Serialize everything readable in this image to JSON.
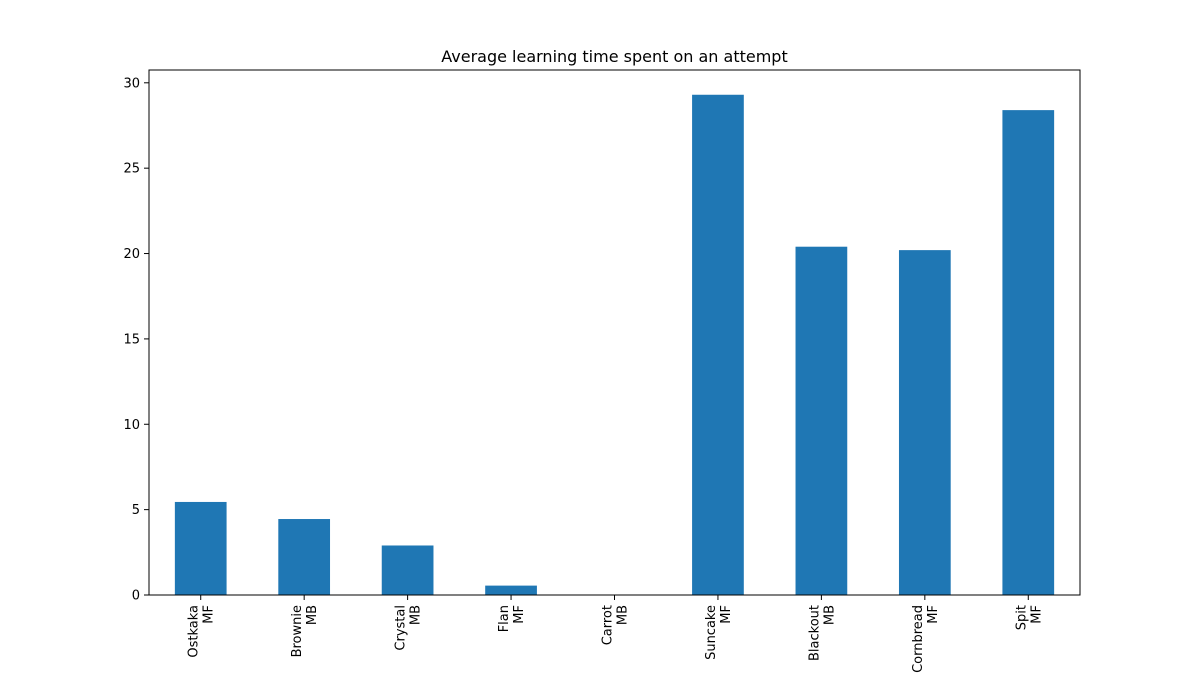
{
  "chart_data": {
    "type": "bar",
    "title": "Average learning time spent on an attempt",
    "xlabel": "",
    "ylabel": "",
    "categories": [
      [
        "Ostkaka",
        "MF"
      ],
      [
        "Brownie",
        "MB"
      ],
      [
        "Crystal",
        "MB"
      ],
      [
        "Flan",
        "MF"
      ],
      [
        "Carrot",
        "MB"
      ],
      [
        "Suncake",
        "MF"
      ],
      [
        "Blackout",
        "MB"
      ],
      [
        "Cornbread",
        "MF"
      ],
      [
        "Spit",
        "MF"
      ]
    ],
    "values": [
      5.45,
      4.45,
      2.9,
      0.55,
      0.0,
      29.3,
      20.4,
      20.2,
      28.4
    ],
    "ylim": [
      0,
      30.75
    ],
    "yticks": [
      0,
      5,
      10,
      15,
      20,
      25,
      30
    ],
    "grid": false,
    "bar_color": "#1f77b4"
  }
}
